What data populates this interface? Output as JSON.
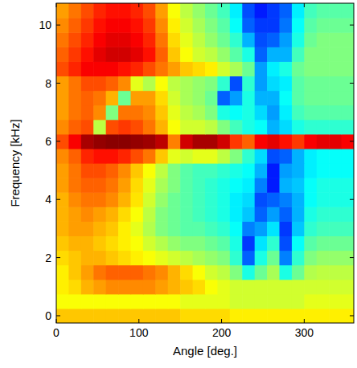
{
  "chart_data": {
    "type": "heatmap",
    "x_label": "Angle [deg.]",
    "y_label": "Frequency [kHz]",
    "xlim": [
      0,
      360
    ],
    "ylim": [
      -0.25,
      10.75
    ],
    "xticks": [
      0,
      100,
      200,
      300
    ],
    "yticks": [
      0,
      2,
      4,
      6,
      8,
      10
    ],
    "zlim": [
      0,
      100
    ],
    "x": [
      7.5,
      22.5,
      37.5,
      52.5,
      67.5,
      82.5,
      97.5,
      112.5,
      127.5,
      142.5,
      157.5,
      172.5,
      187.5,
      202.5,
      217.5,
      232.5,
      247.5,
      262.5,
      277.5,
      292.5,
      307.5,
      322.5,
      337.5,
      352.5
    ],
    "y": [
      0,
      0.5,
      1,
      1.5,
      2,
      2.5,
      3,
      3.5,
      4,
      4.5,
      5,
      5.5,
      6,
      6.5,
      7,
      7.5,
      8,
      8.5,
      9,
      9.5,
      10,
      10.5
    ],
    "values": [
      [
        68,
        68,
        68,
        68,
        68,
        68,
        68,
        68,
        68,
        68,
        66,
        66,
        66,
        66,
        64,
        64,
        64,
        64,
        64,
        64,
        64,
        64,
        64,
        64
      ],
      [
        62,
        62,
        62,
        62,
        62,
        62,
        62,
        62,
        62,
        62,
        60,
        60,
        60,
        60,
        58,
        58,
        58,
        58,
        58,
        58,
        60,
        60,
        60,
        60
      ],
      [
        64,
        66,
        70,
        72,
        74,
        74,
        74,
        74,
        72,
        70,
        68,
        66,
        62,
        60,
        58,
        58,
        58,
        58,
        58,
        58,
        58,
        58,
        58,
        58
      ],
      [
        64,
        68,
        72,
        76,
        78,
        78,
        78,
        76,
        74,
        70,
        66,
        62,
        58,
        56,
        50,
        40,
        48,
        54,
        40,
        48,
        55,
        56,
        56,
        56
      ],
      [
        66,
        68,
        70,
        70,
        68,
        66,
        64,
        62,
        60,
        58,
        56,
        54,
        52,
        50,
        42,
        22,
        40,
        48,
        25,
        42,
        50,
        52,
        52,
        52
      ],
      [
        68,
        70,
        70,
        68,
        66,
        64,
        62,
        58,
        55,
        52,
        50,
        50,
        48,
        46,
        40,
        18,
        35,
        42,
        20,
        38,
        46,
        48,
        48,
        48
      ],
      [
        70,
        72,
        72,
        70,
        68,
        64,
        60,
        55,
        50,
        48,
        46,
        46,
        44,
        42,
        38,
        25,
        28,
        35,
        18,
        32,
        42,
        44,
        44,
        44
      ],
      [
        70,
        72,
        74,
        72,
        70,
        66,
        62,
        56,
        50,
        48,
        46,
        44,
        42,
        40,
        36,
        32,
        22,
        28,
        22,
        30,
        40,
        42,
        42,
        42
      ],
      [
        70,
        74,
        76,
        76,
        74,
        70,
        65,
        58,
        52,
        48,
        46,
        44,
        42,
        40,
        36,
        34,
        20,
        22,
        25,
        30,
        38,
        40,
        40,
        40
      ],
      [
        72,
        76,
        78,
        78,
        76,
        72,
        66,
        60,
        54,
        50,
        46,
        44,
        42,
        40,
        38,
        36,
        25,
        15,
        30,
        32,
        38,
        40,
        40,
        40
      ],
      [
        72,
        76,
        80,
        80,
        78,
        74,
        68,
        62,
        56,
        50,
        46,
        44,
        44,
        42,
        40,
        38,
        30,
        15,
        28,
        30,
        36,
        38,
        38,
        38
      ],
      [
        74,
        78,
        84,
        86,
        86,
        84,
        80,
        76,
        68,
        60,
        58,
        60,
        60,
        56,
        50,
        42,
        34,
        20,
        22,
        30,
        36,
        38,
        38,
        38
      ],
      [
        80,
        88,
        96,
        98,
        99,
        99,
        98,
        97,
        94,
        75,
        92,
        96,
        96,
        92,
        82,
        78,
        88,
        90,
        86,
        82,
        88,
        90,
        90,
        88
      ],
      [
        74,
        78,
        80,
        56,
        80,
        82,
        80,
        76,
        70,
        62,
        58,
        58,
        56,
        50,
        44,
        40,
        38,
        30,
        34,
        40,
        42,
        42,
        42,
        42
      ],
      [
        72,
        76,
        78,
        74,
        50,
        76,
        76,
        74,
        68,
        60,
        56,
        54,
        50,
        40,
        38,
        40,
        34,
        28,
        36,
        44,
        46,
        46,
        46,
        46
      ],
      [
        72,
        76,
        78,
        76,
        70,
        48,
        72,
        72,
        66,
        58,
        54,
        52,
        48,
        22,
        28,
        40,
        30,
        30,
        38,
        46,
        48,
        48,
        48,
        48
      ],
      [
        72,
        76,
        80,
        80,
        78,
        74,
        60,
        55,
        62,
        56,
        54,
        52,
        50,
        42,
        20,
        42,
        28,
        34,
        36,
        46,
        48,
        48,
        48,
        48
      ],
      [
        80,
        84,
        88,
        88,
        88,
        86,
        84,
        80,
        76,
        72,
        68,
        66,
        64,
        58,
        54,
        48,
        28,
        36,
        40,
        48,
        50,
        50,
        50,
        50
      ],
      [
        78,
        82,
        86,
        90,
        92,
        92,
        90,
        86,
        78,
        68,
        62,
        58,
        56,
        52,
        46,
        40,
        22,
        30,
        30,
        44,
        50,
        50,
        50,
        50
      ],
      [
        76,
        80,
        84,
        88,
        90,
        90,
        88,
        84,
        76,
        66,
        60,
        56,
        52,
        48,
        42,
        30,
        20,
        22,
        28,
        40,
        48,
        50,
        50,
        50
      ],
      [
        74,
        78,
        82,
        86,
        88,
        88,
        86,
        82,
        74,
        64,
        58,
        54,
        50,
        46,
        38,
        22,
        18,
        18,
        24,
        38,
        46,
        48,
        48,
        48
      ],
      [
        72,
        76,
        80,
        84,
        86,
        86,
        84,
        80,
        72,
        62,
        56,
        52,
        48,
        44,
        36,
        20,
        15,
        18,
        22,
        36,
        44,
        46,
        46,
        46
      ]
    ]
  }
}
